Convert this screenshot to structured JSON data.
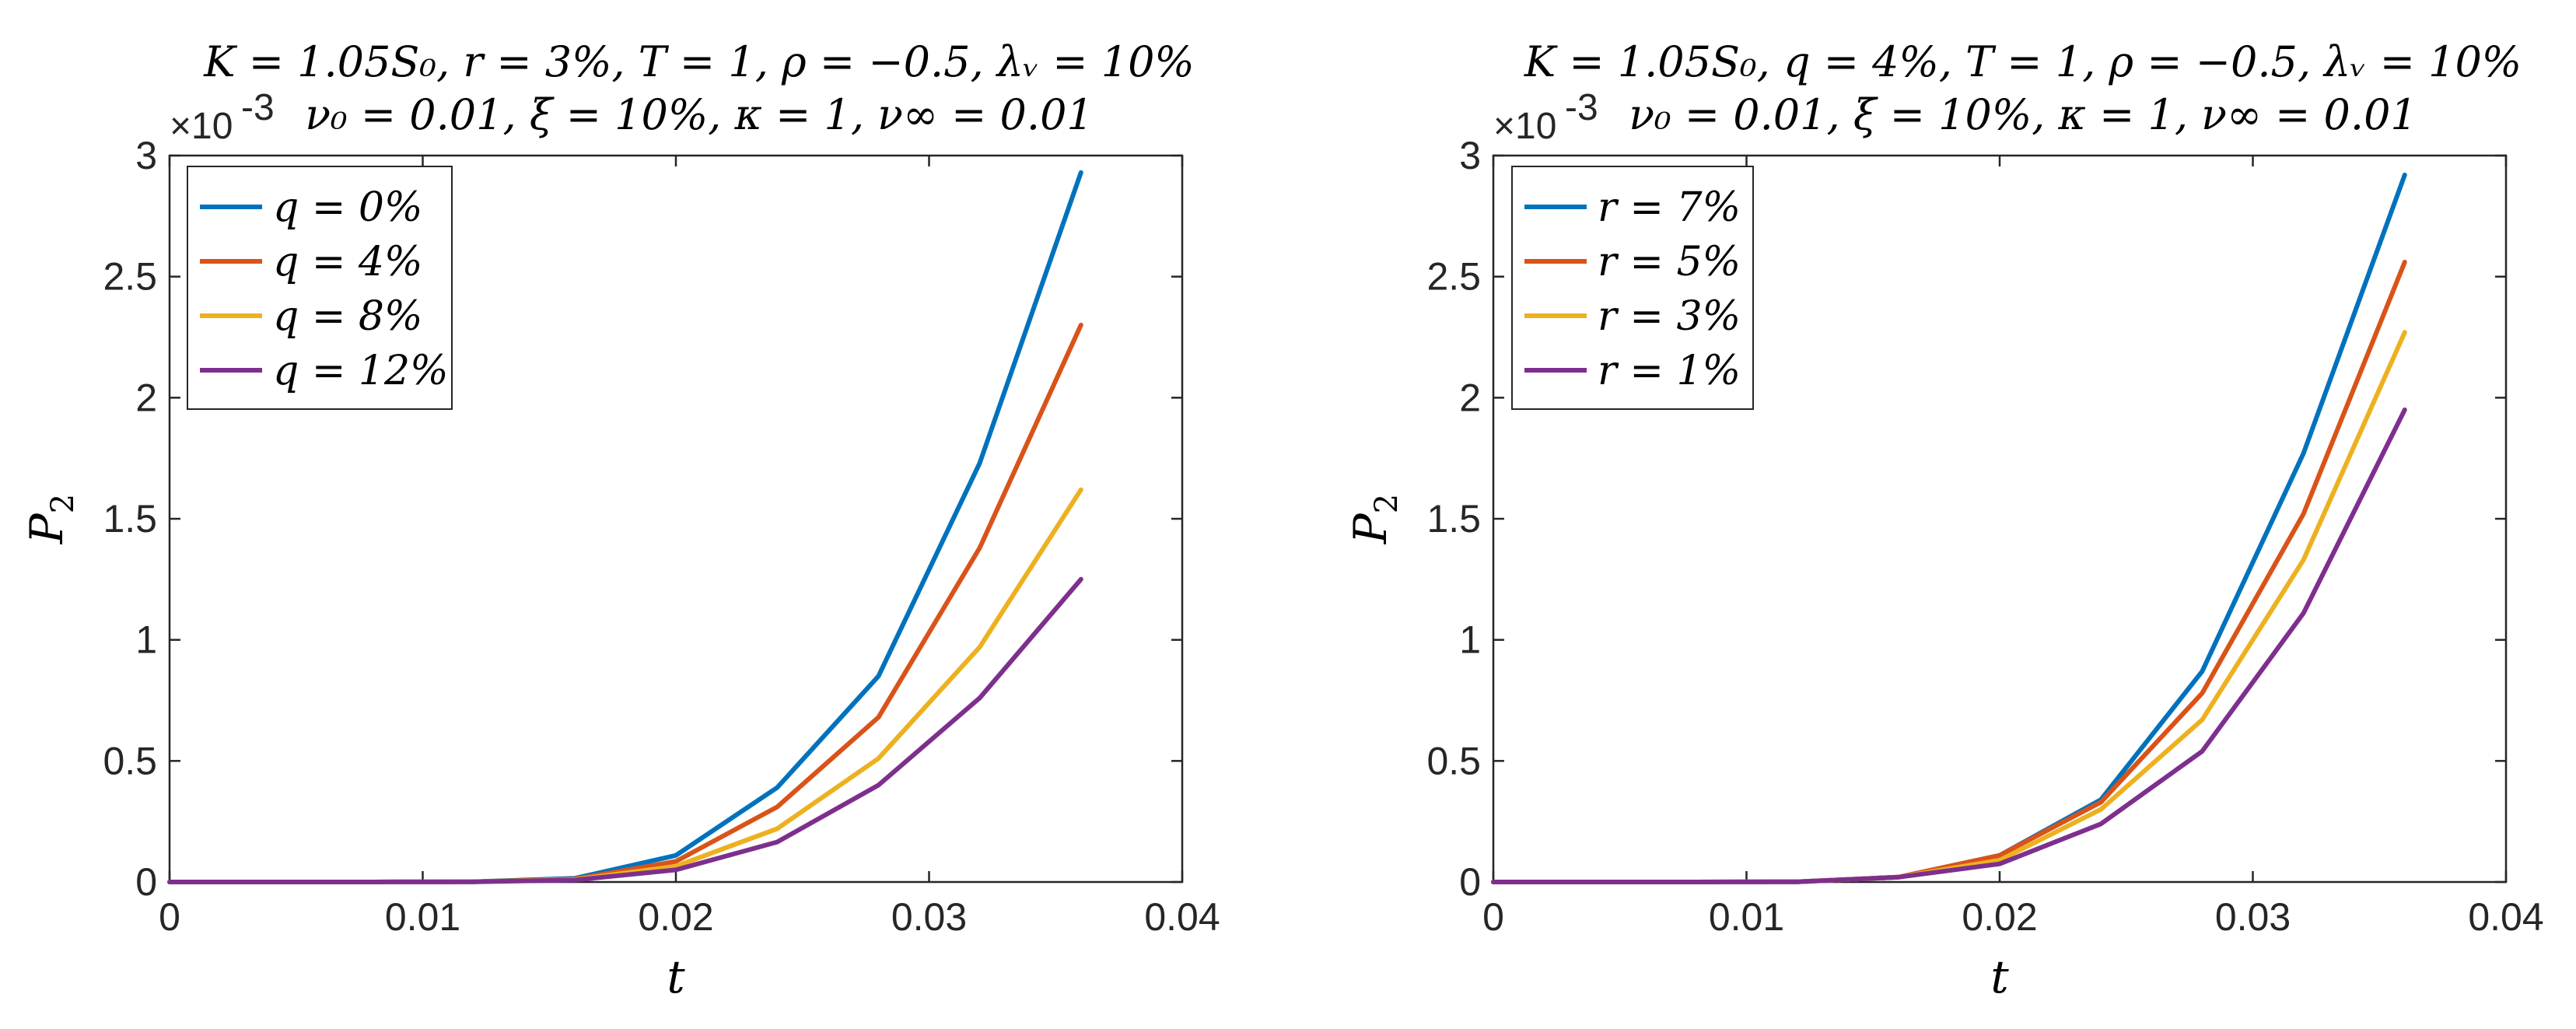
{
  "chart_data": [
    {
      "type": "line",
      "title_lines": [
        "K = 1.05S₀, r = 3%, T = 1, ρ = −0.5, λᵥ = 10%",
        "ν₀ = 0.01, ξ = 10%, κ = 1, ν∞ = 0.01"
      ],
      "xlabel": "t",
      "ylabel": "P",
      "ylabel_sub": "2",
      "exponent_label": "×10",
      "exponent_power": "-3",
      "xlim": [
        0,
        0.04
      ],
      "ylim": [
        0,
        3
      ],
      "xticks": [
        0,
        0.01,
        0.02,
        0.03,
        0.04
      ],
      "xtick_labels": [
        "0",
        "0.01",
        "0.02",
        "0.03",
        "0.04"
      ],
      "yticks": [
        0,
        0.5,
        1,
        1.5,
        2,
        2.5,
        3
      ],
      "ytick_labels": [
        "0",
        "0.5",
        "1",
        "1.5",
        "2",
        "2.5",
        "3"
      ],
      "grid": false,
      "legend_position": "top-left",
      "x": [
        0,
        0.004,
        0.008,
        0.012,
        0.016,
        0.02,
        0.024,
        0.028,
        0.032,
        0.036
      ],
      "series": [
        {
          "name": "q = 0%",
          "color": "#0072BD",
          "values": [
            0,
            0,
            0,
            0.001,
            0.015,
            0.11,
            0.39,
            0.85,
            1.73,
            2.93
          ]
        },
        {
          "name": "q = 4%",
          "color": "#D95319",
          "values": [
            0,
            0,
            0,
            0.001,
            0.012,
            0.085,
            0.31,
            0.68,
            1.38,
            2.3
          ]
        },
        {
          "name": "q = 8%",
          "color": "#EDB120",
          "values": [
            0,
            0,
            0,
            0.001,
            0.01,
            0.065,
            0.22,
            0.51,
            0.97,
            1.62
          ]
        },
        {
          "name": "q = 12%",
          "color": "#7E2F8E",
          "values": [
            0,
            0,
            0,
            0.001,
            0.008,
            0.05,
            0.165,
            0.4,
            0.76,
            1.25
          ]
        }
      ]
    },
    {
      "type": "line",
      "title_lines": [
        "K = 1.05S₀, q = 4%, T = 1, ρ = −0.5, λᵥ = 10%",
        "ν₀ = 0.01, ξ = 10%, κ = 1, ν∞ = 0.01"
      ],
      "xlabel": "t",
      "ylabel": "P",
      "ylabel_sub": "2",
      "exponent_label": "×10",
      "exponent_power": "-3",
      "xlim": [
        0,
        0.04
      ],
      "ylim": [
        0,
        3
      ],
      "xticks": [
        0,
        0.01,
        0.02,
        0.03,
        0.04
      ],
      "xtick_labels": [
        "0",
        "0.01",
        "0.02",
        "0.03",
        "0.04"
      ],
      "yticks": [
        0,
        0.5,
        1,
        1.5,
        2,
        2.5,
        3
      ],
      "ytick_labels": [
        "0",
        "0.5",
        "1",
        "1.5",
        "2",
        "2.5",
        "3"
      ],
      "grid": false,
      "legend_position": "top-left",
      "x": [
        0,
        0.004,
        0.008,
        0.012,
        0.016,
        0.02,
        0.024,
        0.028,
        0.032,
        0.036
      ],
      "series": [
        {
          "name": "r = 7%",
          "color": "#0072BD",
          "values": [
            0,
            0,
            0,
            0.001,
            0.02,
            0.11,
            0.34,
            0.87,
            1.77,
            2.92
          ]
        },
        {
          "name": "r = 5%",
          "color": "#D95319",
          "values": [
            0,
            0,
            0,
            0.001,
            0.02,
            0.11,
            0.33,
            0.78,
            1.52,
            2.56
          ]
        },
        {
          "name": "r = 3%",
          "color": "#EDB120",
          "values": [
            0,
            0,
            0,
            0.001,
            0.02,
            0.09,
            0.3,
            0.67,
            1.33,
            2.27
          ]
        },
        {
          "name": "r = 1%",
          "color": "#7E2F8E",
          "values": [
            0,
            0,
            0,
            0.001,
            0.02,
            0.075,
            0.24,
            0.54,
            1.11,
            1.95
          ]
        }
      ]
    }
  ]
}
